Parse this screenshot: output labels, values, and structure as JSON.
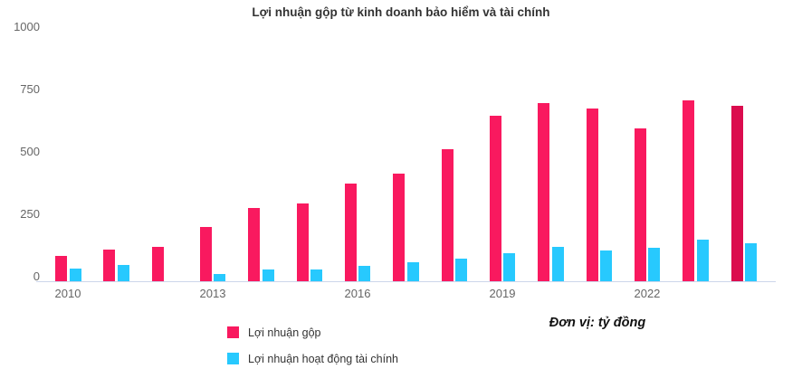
{
  "unit_note": "Đơn vị: tỷ đồng",
  "chart_data": {
    "type": "bar",
    "title": "Lợi nhuận gộp từ kinh doanh bảo hiểm và tài chính",
    "categories": [
      "2010",
      "2011",
      "2012",
      "2013",
      "2014",
      "2015",
      "2016",
      "2017",
      "2018",
      "2019",
      "2020",
      "2021",
      "2022",
      "2023",
      "2024"
    ],
    "series": [
      {
        "name": "Lợi nhuận gộp",
        "color": "#F9195F",
        "point_colors": {
          "14": "#DB0C4E"
        },
        "values": [
          100,
          125,
          135,
          215,
          290,
          305,
          385,
          425,
          520,
          650,
          700,
          680,
          600,
          710,
          690
        ]
      },
      {
        "name": "Lợi nhuận hoạt động tài chính",
        "color": "#27C9FE",
        "point_colors": {},
        "values": [
          50,
          65,
          0,
          30,
          45,
          45,
          60,
          75,
          90,
          110,
          135,
          120,
          130,
          165,
          150
        ]
      }
    ],
    "ylabel": "",
    "xlabel": "",
    "ylim": [
      0,
      1000
    ],
    "yticks": [
      0,
      250,
      500,
      750,
      1000
    ],
    "xtick_labels": [
      "2010",
      "2013",
      "2016",
      "2019",
      "2022"
    ],
    "xtick_step": 3,
    "grid": false,
    "legend_position": "bottom-left",
    "axis_line_color": "#ccd6eb"
  }
}
